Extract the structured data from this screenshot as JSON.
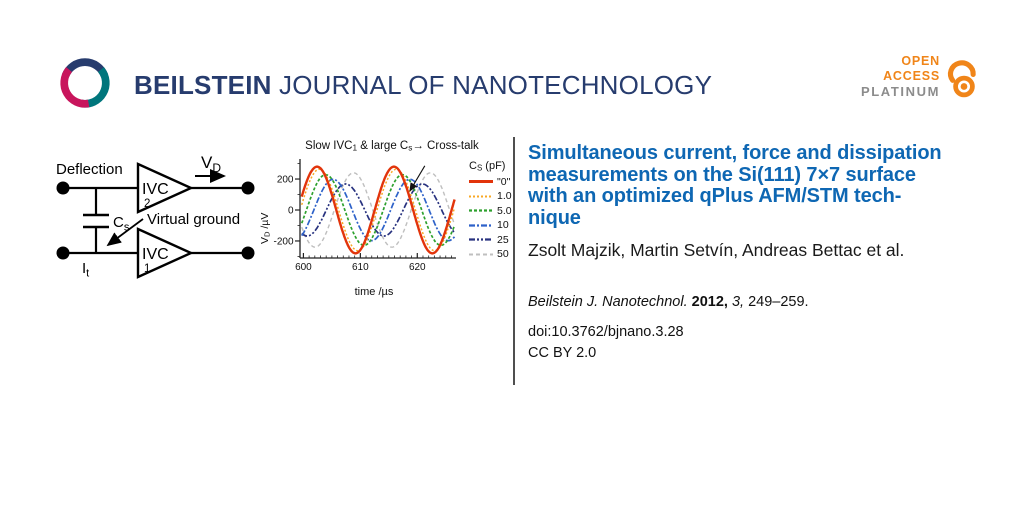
{
  "header": {
    "journal_name_bold": "BEILSTEIN",
    "journal_name_rest": "JOURNAL OF NANOTECHNOLOGY",
    "open_access": {
      "line1": "OPEN",
      "line2": "ACCESS",
      "line3": "PLATINUM"
    },
    "colors": {
      "navy": "#273C6E",
      "teal": "#00767C",
      "crimson": "#C8155C",
      "orange": "#F08519",
      "gray": "#8C8C8C"
    }
  },
  "circuit": {
    "deflection": "Deflection",
    "amp_top_name": "IVC",
    "amp_top_num": "2",
    "amp_bottom_name": "IVC",
    "amp_bottom_num": "1",
    "vd_main": "V",
    "vd_sub": "D",
    "cs_main": "C",
    "cs_sub": "s",
    "it_main": "I",
    "it_sub": "t",
    "virtual_ground": "Virtual ground"
  },
  "chart_data": {
    "type": "line",
    "title_rich": "Slow IVC_{1} & large C_{s}→ Cross-talk",
    "xlabel_rich": "time /µs",
    "ylabel_rich": "V_{D} /µV",
    "xlim": [
      599.4,
      626.8
    ],
    "ylim": [
      -310,
      310
    ],
    "x_major_ticks": [
      600,
      610,
      620
    ],
    "y_major_ticks": [
      -200,
      0,
      200
    ],
    "x_minor_step": 1,
    "y_minor_step": 100,
    "grid": false,
    "legend_position": "right",
    "legend_title_rich": "C_{S} (pF)",
    "waveform": "sine",
    "period_us": 13.5,
    "series": [
      {
        "label": "\"0\"",
        "cs_pF": 0,
        "amplitude_uV": 280,
        "peak_time_us": 602.4,
        "color": "#E2340B",
        "dash": "solid",
        "width": 2.4
      },
      {
        "label": "1.0",
        "cs_pF": 1,
        "amplitude_uV": 263,
        "peak_time_us": 602.8,
        "color": "#F9A825",
        "dash": "2 2",
        "width": 1.5
      },
      {
        "label": "5.0",
        "cs_pF": 5,
        "amplitude_uV": 228,
        "peak_time_us": 603.9,
        "color": "#2EA12E",
        "dash": "3 2",
        "width": 1.7
      },
      {
        "label": "10",
        "cs_pF": 10,
        "amplitude_uV": 198,
        "peak_time_us": 605.2,
        "color": "#2E62C9",
        "dash": "6 2 2 2",
        "width": 1.7
      },
      {
        "label": "25",
        "cs_pF": 25,
        "amplitude_uV": 168,
        "peak_time_us": 607.4,
        "color": "#28327F",
        "dash": "6 2 2 2 2 2",
        "width": 1.7
      },
      {
        "label": "50",
        "cs_pF": 50,
        "amplitude_uV": 240,
        "peak_time_us": 608.8,
        "color": "#BFBFBF",
        "dash": "4 3",
        "width": 1.4
      }
    ],
    "annotation_arrow": {
      "from_frac": [
        0.8,
        0.04
      ],
      "to_frac": [
        0.705,
        0.3
      ]
    }
  },
  "article": {
    "title_lines": [
      "Simultaneous current, force and dissipation",
      "measurements on the Si(111) 7×7 surface",
      "with an optimized qPlus AFM/STM tech-",
      "nique"
    ],
    "authors": "Zsolt Majzik, Martin Setvín, Andreas Bettac et al.",
    "citation": {
      "journal": "Beilstein J. Nanotechnol.",
      "year": "2012,",
      "volume": "3,",
      "pages": "249–259."
    },
    "doi": "doi:10.3762/bjnano.3.28",
    "license": "CC BY 2.0"
  }
}
